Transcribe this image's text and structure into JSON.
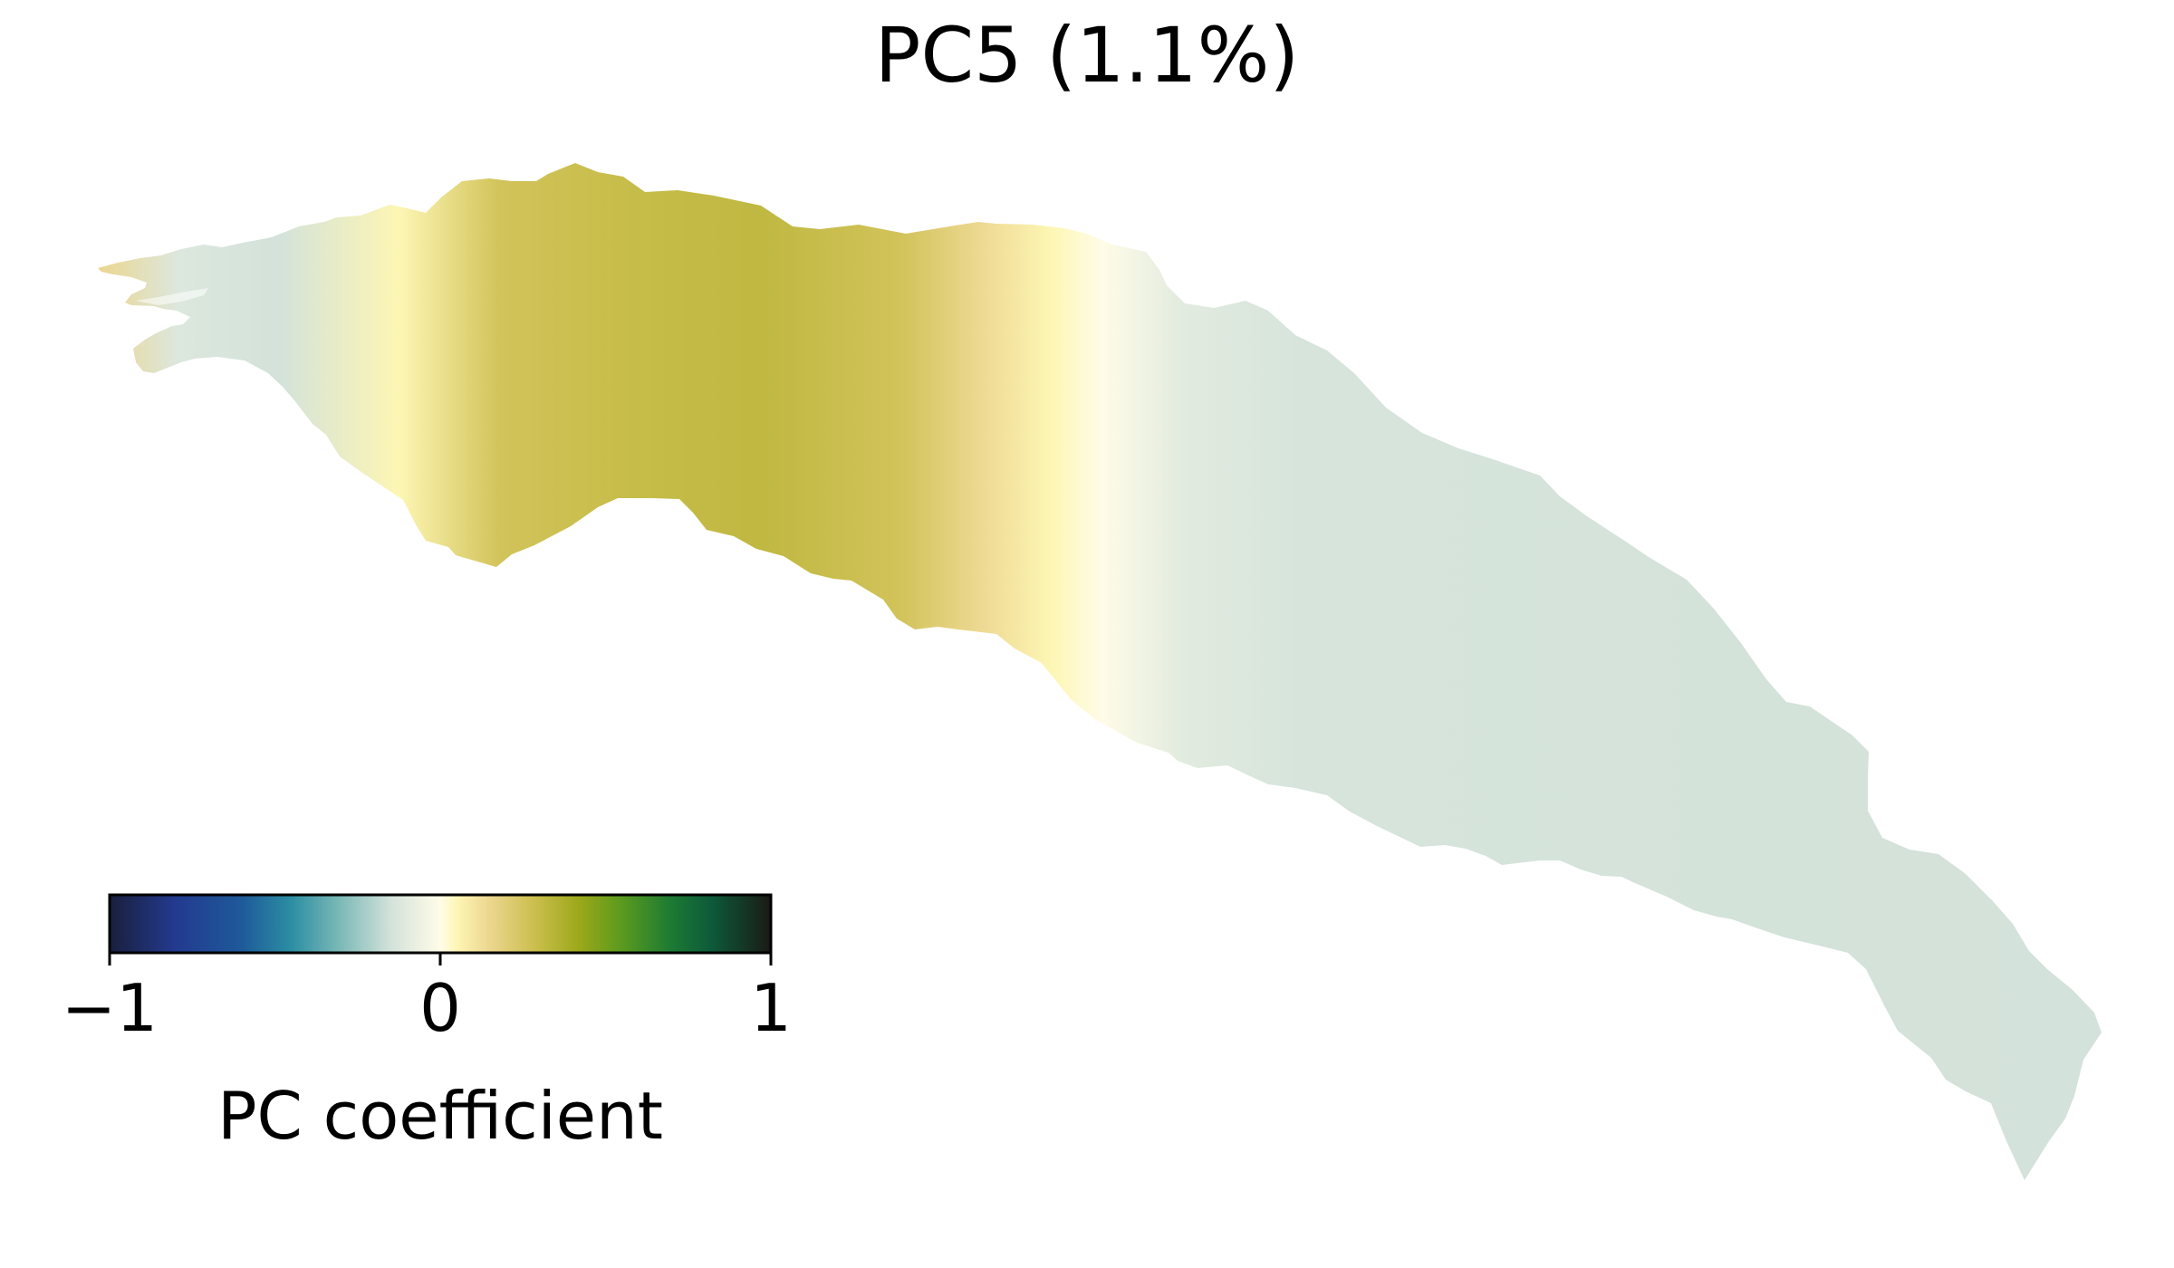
{
  "chart_data": {
    "type": "heatmap",
    "title": "PC5 (1.1%)",
    "colorbar": {
      "label": "PC coefficient",
      "vmin": -1,
      "vmax": 1,
      "ticks": [
        {
          "value": -1,
          "label": "−1"
        },
        {
          "value": 0,
          "label": "0"
        },
        {
          "value": 1,
          "label": "1"
        }
      ],
      "colormap": "gist_earth-like diverging",
      "colormap_stops": [
        {
          "value": -1.0,
          "color": "#1a1f3d"
        },
        {
          "value": -0.8,
          "color": "#233a8f"
        },
        {
          "value": -0.6,
          "color": "#1e5a9a"
        },
        {
          "value": -0.45,
          "color": "#2c8ea3"
        },
        {
          "value": -0.3,
          "color": "#7dbab8"
        },
        {
          "value": -0.15,
          "color": "#d3e2da"
        },
        {
          "value": 0.0,
          "color": "#fffce8"
        },
        {
          "value": 0.05,
          "color": "#fdf6b4"
        },
        {
          "value": 0.15,
          "color": "#ecd68f"
        },
        {
          "value": 0.28,
          "color": "#cdbf50"
        },
        {
          "value": 0.42,
          "color": "#9ca81a"
        },
        {
          "value": 0.55,
          "color": "#5a9a1e"
        },
        {
          "value": 0.7,
          "color": "#1c7a33"
        },
        {
          "value": 0.82,
          "color": "#0d5a3a"
        },
        {
          "value": 1.0,
          "color": "#1a1a14"
        }
      ],
      "placement": "bottom-left",
      "orientation": "horizontal"
    },
    "field": {
      "description_values": "coefficient along the shape from left (west) to right (east)",
      "samples": [
        {
          "position": 0.0,
          "value": 0.15
        },
        {
          "position": 0.04,
          "value": -0.12
        },
        {
          "position": 0.09,
          "value": -0.15
        },
        {
          "position": 0.15,
          "value": 0.05
        },
        {
          "position": 0.2,
          "value": 0.26
        },
        {
          "position": 0.27,
          "value": 0.3
        },
        {
          "position": 0.33,
          "value": 0.32
        },
        {
          "position": 0.4,
          "value": 0.26
        },
        {
          "position": 0.44,
          "value": 0.14
        },
        {
          "position": 0.475,
          "value": 0.05
        },
        {
          "position": 0.5,
          "value": 0.0
        },
        {
          "position": 0.54,
          "value": -0.1
        },
        {
          "position": 0.6,
          "value": -0.14
        },
        {
          "position": 1.0,
          "value": -0.15
        }
      ]
    },
    "xlim": null,
    "ylim": null,
    "grid": false
  }
}
